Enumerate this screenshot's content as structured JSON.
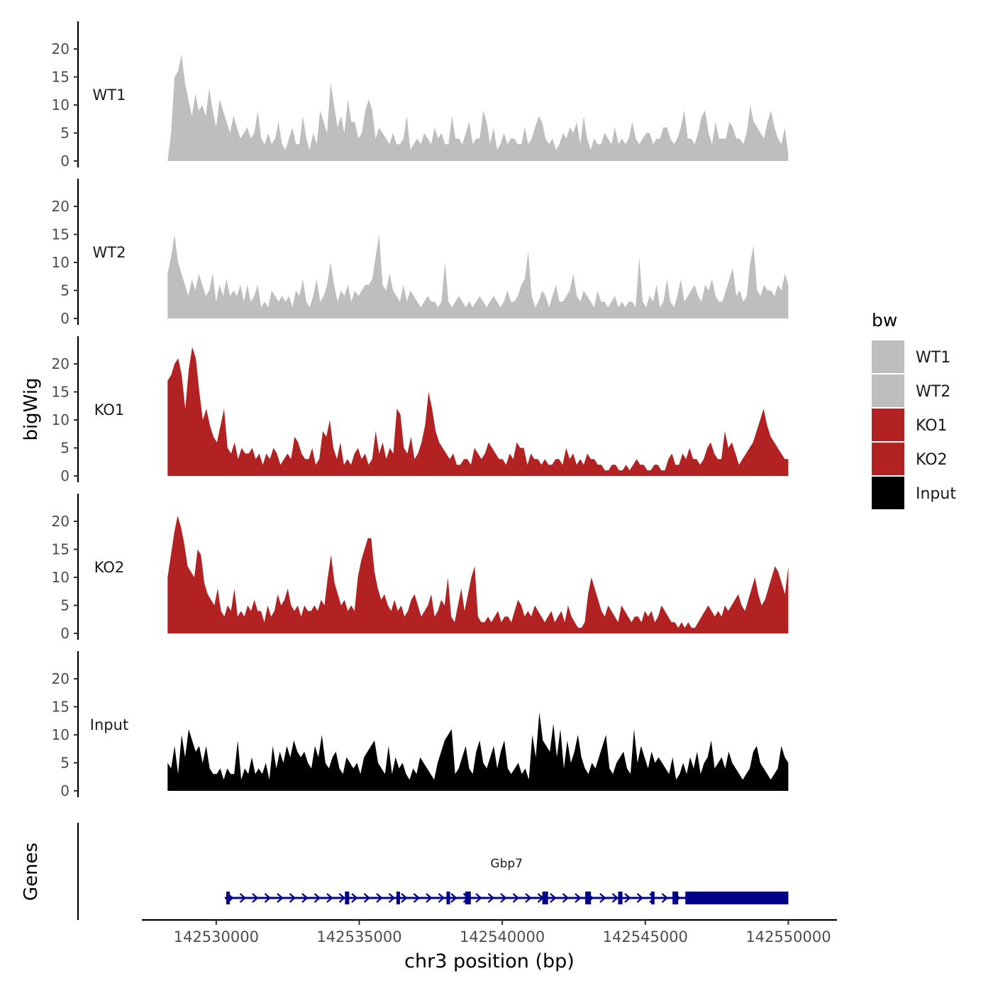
{
  "chart_data": {
    "type": "area",
    "title": "",
    "ylabel": "bigWig",
    "xlabel": "chr3 position (bp)",
    "xlim": [
      142527400,
      142551700
    ],
    "x_ticks": [
      142530000,
      142535000,
      142540000,
      142545000,
      142550000
    ],
    "x_tick_labels": [
      "142530000",
      "142535000",
      "142540000",
      "142545000",
      "142550000"
    ],
    "ylim": [
      0,
      25
    ],
    "y_ticks": [
      0,
      5,
      10,
      15,
      20
    ],
    "y_tick_labels": [
      "0",
      "5",
      "10",
      "15",
      "20"
    ],
    "x_start": 142528300,
    "x_end": 142550000,
    "legend": {
      "title": "bw",
      "position": "right",
      "entries": [
        {
          "label": "WT1",
          "color": "#bebebe"
        },
        {
          "label": "WT2",
          "color": "#bebebe"
        },
        {
          "label": "KO1",
          "color": "#b22222"
        },
        {
          "label": "KO2",
          "color": "#b22222"
        },
        {
          "label": "Input",
          "color": "#000000"
        }
      ]
    },
    "series": [
      {
        "name": "WT1",
        "color": "#bebebe",
        "values": [
          0,
          5,
          15,
          16,
          19,
          14,
          11,
          8,
          12,
          9,
          10,
          8,
          13,
          9,
          6,
          11,
          9,
          7,
          5,
          8,
          6,
          4,
          5,
          6,
          4,
          5,
          9,
          4,
          3,
          5,
          3,
          4,
          7,
          3,
          2,
          4,
          6,
          3,
          3,
          8,
          4,
          2,
          5,
          3,
          9,
          7,
          5,
          14,
          10,
          6,
          8,
          5,
          11,
          7,
          7,
          4,
          5,
          9,
          11,
          9,
          4,
          6,
          5,
          4,
          3,
          5,
          3,
          3,
          4,
          8,
          2,
          3,
          4,
          3,
          5,
          4,
          3,
          6,
          4,
          5,
          3,
          3,
          8,
          4,
          4,
          3,
          5,
          7,
          3,
          4,
          4,
          9,
          7,
          3,
          6,
          2,
          3,
          5,
          3,
          4,
          4,
          3,
          3,
          6,
          3,
          4,
          6,
          8,
          7,
          4,
          3,
          4,
          2,
          3,
          5,
          4,
          6,
          5,
          7,
          3,
          8,
          4,
          2,
          4,
          3,
          3,
          5,
          4,
          3,
          6,
          3,
          4,
          3,
          4,
          7,
          4,
          3,
          4,
          5,
          5,
          3,
          4,
          4,
          6,
          6,
          4,
          3,
          4,
          6,
          9,
          4,
          4,
          3,
          5,
          8,
          9,
          5,
          3,
          7,
          4,
          4,
          4,
          7,
          6,
          4,
          4,
          3,
          5,
          10,
          7,
          6,
          5,
          4,
          7,
          9,
          6,
          4,
          3,
          6,
          1
        ]
      },
      {
        "name": "WT2",
        "color": "#bebebe",
        "values": [
          8,
          11,
          15,
          10,
          8,
          6,
          4,
          7,
          5,
          8,
          6,
          4,
          5,
          8,
          3,
          6,
          4,
          7,
          4,
          5,
          4,
          6,
          3,
          6,
          3,
          4,
          6,
          2,
          3,
          2,
          5,
          4,
          3,
          4,
          3,
          4,
          2,
          5,
          4,
          7,
          3,
          2,
          4,
          7,
          3,
          4,
          6,
          10,
          6,
          3,
          5,
          4,
          6,
          3,
          5,
          4,
          5,
          6,
          6,
          7,
          11,
          15,
          6,
          5,
          8,
          5,
          4,
          3,
          6,
          3,
          5,
          4,
          3,
          2,
          3,
          4,
          3,
          3,
          2,
          3,
          10,
          3,
          2,
          3,
          4,
          3,
          2,
          3,
          2,
          3,
          4,
          3,
          2,
          3,
          4,
          3,
          2,
          3,
          5,
          3,
          3,
          4,
          6,
          7,
          12,
          4,
          2,
          3,
          5,
          4,
          2,
          4,
          6,
          3,
          3,
          4,
          5,
          8,
          4,
          3,
          5,
          4,
          3,
          2,
          5,
          3,
          3,
          2,
          3,
          4,
          2,
          3,
          2,
          3,
          3,
          2,
          11,
          3,
          2,
          4,
          3,
          6,
          2,
          3,
          7,
          3,
          2,
          4,
          7,
          3,
          4,
          5,
          6,
          4,
          3,
          6,
          5,
          7,
          4,
          3,
          3,
          5,
          7,
          9,
          4,
          5,
          3,
          4,
          10,
          13,
          5,
          4,
          6,
          5,
          5,
          4,
          6,
          5,
          8,
          6
        ]
      },
      {
        "name": "KO1",
        "color": "#b22222",
        "values": [
          17,
          18,
          20,
          21,
          18,
          12,
          19,
          23,
          21,
          15,
          10,
          12,
          9,
          7,
          6,
          9,
          12,
          5,
          4,
          6,
          3,
          5,
          4,
          4,
          5,
          3,
          4,
          2,
          4,
          3,
          5,
          4,
          2,
          3,
          4,
          3,
          7,
          6,
          4,
          3,
          3,
          5,
          2,
          3,
          8,
          7,
          10,
          5,
          3,
          6,
          2,
          3,
          2,
          4,
          5,
          3,
          4,
          2,
          3,
          8,
          4,
          6,
          3,
          5,
          4,
          12,
          11,
          5,
          4,
          7,
          3,
          4,
          6,
          9,
          15,
          12,
          8,
          6,
          5,
          4,
          3,
          4,
          2,
          2,
          3,
          3,
          2,
          5,
          4,
          3,
          4,
          6,
          5,
          4,
          3,
          3,
          2,
          4,
          3,
          6,
          5,
          5,
          2,
          4,
          3,
          3,
          2,
          3,
          2,
          2,
          3,
          3,
          2,
          5,
          3,
          4,
          2,
          3,
          2,
          4,
          3,
          3,
          2,
          2,
          1,
          1,
          2,
          2,
          1,
          1,
          2,
          1,
          2,
          3,
          2,
          2,
          1,
          1,
          2,
          2,
          1,
          1,
          3,
          4,
          2,
          2,
          4,
          3,
          5,
          3,
          3,
          2,
          3,
          5,
          6,
          4,
          3,
          3,
          8,
          5,
          6,
          4,
          2,
          3,
          4,
          5,
          6,
          8,
          10,
          12,
          9,
          7,
          6,
          5,
          4,
          3,
          3
        ]
      },
      {
        "name": "KO2",
        "color": "#b22222",
        "values": [
          10,
          14,
          18,
          21,
          19,
          16,
          12,
          11,
          10,
          15,
          14,
          9,
          7,
          6,
          5,
          8,
          4,
          3,
          5,
          4,
          8,
          3,
          4,
          3,
          5,
          4,
          6,
          4,
          4,
          2,
          5,
          3,
          4,
          7,
          5,
          6,
          8,
          5,
          4,
          5,
          3,
          5,
          4,
          4,
          5,
          4,
          6,
          5,
          10,
          14,
          9,
          7,
          5,
          6,
          4,
          5,
          4,
          10,
          13,
          15,
          17,
          17,
          11,
          8,
          6,
          7,
          5,
          4,
          6,
          4,
          5,
          3,
          4,
          6,
          7,
          5,
          3,
          4,
          5,
          7,
          3,
          4,
          6,
          5,
          10,
          3,
          2,
          5,
          8,
          4,
          7,
          10,
          12,
          3,
          2,
          2,
          3,
          2,
          3,
          4,
          2,
          3,
          3,
          2,
          4,
          6,
          5,
          3,
          4,
          3,
          5,
          4,
          3,
          2,
          3,
          4,
          2,
          3,
          4,
          2,
          5,
          3,
          2,
          1,
          1,
          2,
          7,
          10,
          8,
          6,
          4,
          3,
          5,
          4,
          3,
          2,
          5,
          4,
          3,
          2,
          3,
          3,
          2,
          4,
          3,
          4,
          2,
          3,
          5,
          4,
          3,
          2,
          2,
          1,
          2,
          1,
          2,
          1,
          1,
          2,
          3,
          4,
          5,
          4,
          3,
          4,
          3,
          5,
          4,
          5,
          6,
          7,
          5,
          4,
          6,
          8,
          10,
          7,
          5,
          6,
          8,
          10,
          12,
          11,
          9,
          7,
          12
        ]
      },
      {
        "name": "Input",
        "color": "#000000",
        "values": [
          5,
          4,
          8,
          3,
          10,
          6,
          11,
          9,
          7,
          8,
          5,
          8,
          4,
          3,
          3,
          4,
          2,
          4,
          3,
          3,
          9,
          2,
          4,
          3,
          6,
          3,
          4,
          3,
          5,
          2,
          8,
          4,
          7,
          5,
          8,
          6,
          9,
          7,
          6,
          7,
          5,
          4,
          8,
          6,
          10,
          5,
          4,
          6,
          7,
          4,
          3,
          6,
          5,
          4,
          5,
          3,
          6,
          7,
          8,
          9,
          5,
          4,
          3,
          8,
          3,
          6,
          4,
          5,
          3,
          2,
          4,
          3,
          6,
          5,
          4,
          3,
          2,
          5,
          7,
          9,
          10,
          11,
          3,
          4,
          6,
          8,
          4,
          3,
          7,
          9,
          5,
          4,
          6,
          8,
          4,
          7,
          9,
          4,
          3,
          4,
          5,
          3,
          4,
          2,
          10,
          6,
          14,
          9,
          8,
          7,
          12,
          6,
          11,
          4,
          9,
          5,
          7,
          10,
          6,
          4,
          3,
          5,
          4,
          6,
          8,
          10,
          4,
          3,
          5,
          6,
          7,
          4,
          3,
          11,
          5,
          8,
          6,
          4,
          7,
          5,
          6,
          5,
          4,
          3,
          6,
          2,
          3,
          5,
          3,
          6,
          4,
          7,
          3,
          5,
          6,
          9,
          4,
          5,
          6,
          4,
          7,
          5,
          4,
          3,
          2,
          3,
          4,
          7,
          8,
          5,
          4,
          3,
          2,
          3,
          4,
          8,
          6,
          5
        ]
      }
    ],
    "genes_panel": {
      "ylabel": "Genes",
      "gene_label": "Gbp7",
      "strand": "+",
      "gene_start": 142530300,
      "gene_end": 142550000,
      "exons": [
        [
          142530350,
          142530450
        ],
        [
          142534500,
          142534650
        ],
        [
          142536300,
          142536400
        ],
        [
          142538050,
          142538150
        ],
        [
          142538700,
          142538900
        ],
        [
          142541400,
          142541600
        ],
        [
          142542900,
          142543100
        ],
        [
          142544050,
          142544200
        ],
        [
          142545200,
          142545300
        ],
        [
          142545950,
          142546150
        ],
        [
          142546400,
          142550000
        ]
      ]
    }
  }
}
